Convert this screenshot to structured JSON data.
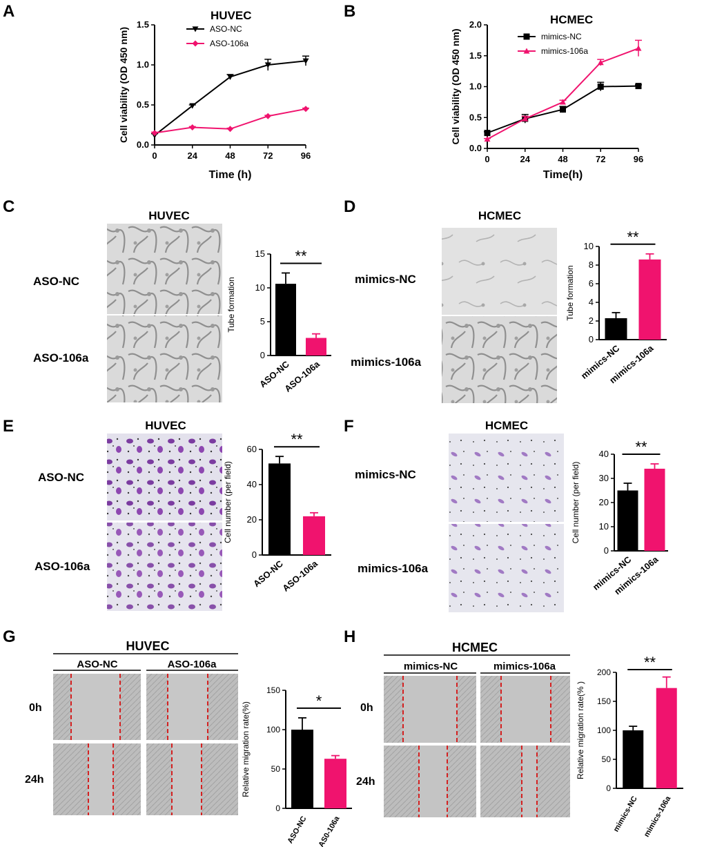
{
  "colors": {
    "black": "#000000",
    "pink": "#F0136E",
    "tube_bg": "#d8d8d8",
    "stain_bg": "#dcdcea",
    "stain_cell": "#8a44a8",
    "wound_bg": "#b8b8b8"
  },
  "panels": {
    "A": "A",
    "B": "B",
    "C": "C",
    "D": "D",
    "E": "E",
    "F": "F",
    "G": "G",
    "H": "H"
  },
  "images": {
    "C": {
      "title": "HUVEC",
      "rows": [
        "ASO-NC",
        "ASO-106a"
      ]
    },
    "D": {
      "title": "HCMEC",
      "rows": [
        "mimics-NC",
        "mimics-106a"
      ]
    },
    "E": {
      "title": "HUVEC",
      "rows": [
        "ASO-NC",
        "ASO-106a"
      ]
    },
    "F": {
      "title": "HCMEC",
      "rows": [
        "mimics-NC",
        "mimics-106a"
      ]
    },
    "G": {
      "title": "HUVEC",
      "cols": [
        "ASO-NC",
        "ASO-106a"
      ],
      "rows": [
        "0h",
        "24h"
      ]
    },
    "H": {
      "title": "HCMEC",
      "cols": [
        "mimics-NC",
        "mimics-106a"
      ],
      "rows": [
        "0h",
        "24h"
      ]
    }
  },
  "chart_data": [
    {
      "id": "A",
      "type": "line",
      "title": "HUVEC",
      "xlabel": "Time (h)",
      "ylabel": "Cell viability (OD 450 nm)",
      "x": [
        0,
        24,
        48,
        72,
        96
      ],
      "xticks": [
        "0",
        "24",
        "48",
        "72",
        "96"
      ],
      "ylim": [
        0,
        1.5
      ],
      "yticks": [
        "0.0",
        "0.5",
        "1.0",
        "1.5"
      ],
      "series": [
        {
          "name": "ASO-NC",
          "color": "#000000",
          "marker": "triangle-down",
          "values": [
            0.12,
            0.49,
            0.85,
            1.0,
            1.05
          ],
          "err": [
            0.02,
            0.01,
            0.03,
            0.07,
            0.06
          ]
        },
        {
          "name": "ASO-106a",
          "color": "#F0136E",
          "marker": "diamond",
          "values": [
            0.15,
            0.22,
            0.2,
            0.36,
            0.45
          ],
          "err": [
            0.01,
            0.01,
            0.01,
            0.01,
            0.01
          ]
        }
      ]
    },
    {
      "id": "B",
      "type": "line",
      "title": "HCMEC",
      "xlabel": "Time(h)",
      "ylabel": "Cell viability (OD 450 nm)",
      "x": [
        0,
        24,
        48,
        72,
        96
      ],
      "xticks": [
        "0",
        "24",
        "48",
        "72",
        "96"
      ],
      "ylim": [
        0,
        2.0
      ],
      "yticks": [
        "0.0",
        "0.5",
        "1.0",
        "1.5",
        "2.0"
      ],
      "series": [
        {
          "name": "mimics-NC",
          "color": "#000000",
          "marker": "square",
          "values": [
            0.25,
            0.48,
            0.63,
            1.0,
            1.01
          ],
          "err": [
            0.02,
            0.07,
            0.05,
            0.07,
            0.02
          ]
        },
        {
          "name": "mimics-106a",
          "color": "#F0136E",
          "marker": "triangle",
          "values": [
            0.15,
            0.48,
            0.75,
            1.39,
            1.62
          ],
          "err": [
            0.01,
            0.04,
            0.03,
            0.05,
            0.13
          ]
        }
      ]
    },
    {
      "id": "C",
      "type": "bar",
      "ylabel": "Tube formation",
      "categories": [
        "ASO-NC",
        "ASO-106a"
      ],
      "values": [
        10.6,
        2.6
      ],
      "err": [
        1.6,
        0.6
      ],
      "colors": [
        "#000000",
        "#F0136E"
      ],
      "ylim": [
        0,
        15
      ],
      "yticks": [
        "0",
        "5",
        "10",
        "15"
      ],
      "sig": "**"
    },
    {
      "id": "D",
      "type": "bar",
      "ylabel": "Tube formation",
      "categories": [
        "mimics-NC",
        "mimics-106a"
      ],
      "values": [
        2.3,
        8.6
      ],
      "err": [
        0.6,
        0.6
      ],
      "colors": [
        "#000000",
        "#F0136E"
      ],
      "ylim": [
        0,
        10
      ],
      "yticks": [
        "0",
        "2",
        "4",
        "6",
        "8",
        "10"
      ],
      "sig": "**"
    },
    {
      "id": "E",
      "type": "bar",
      "ylabel": "Cell number (per field)",
      "categories": [
        "ASO-NC",
        "ASO-106a"
      ],
      "values": [
        52,
        22
      ],
      "err": [
        4,
        2
      ],
      "colors": [
        "#000000",
        "#F0136E"
      ],
      "ylim": [
        0,
        60
      ],
      "yticks": [
        "0",
        "20",
        "40",
        "60"
      ],
      "sig": "**"
    },
    {
      "id": "F",
      "type": "bar",
      "ylabel": "Cell number (per field)",
      "categories": [
        "mimics-NC",
        "mimics-106a"
      ],
      "values": [
        25,
        34
      ],
      "err": [
        3,
        2
      ],
      "colors": [
        "#000000",
        "#F0136E"
      ],
      "ylim": [
        0,
        40
      ],
      "yticks": [
        "0",
        "10",
        "20",
        "30",
        "40"
      ],
      "sig": "**"
    },
    {
      "id": "G",
      "type": "bar",
      "ylabel": "Relative migration rate(%)",
      "categories": [
        "ASO-NC",
        "AS0-106a"
      ],
      "values": [
        100,
        63
      ],
      "err": [
        15,
        4
      ],
      "colors": [
        "#000000",
        "#F0136E"
      ],
      "ylim": [
        0,
        150
      ],
      "yticks": [
        "0",
        "50",
        "100",
        "150"
      ],
      "sig": "*"
    },
    {
      "id": "H",
      "type": "bar",
      "ylabel": "Relative migration rate(% )",
      "categories": [
        "mimics-NC",
        "mimics-106a"
      ],
      "values": [
        100,
        173
      ],
      "err": [
        7,
        19
      ],
      "colors": [
        "#000000",
        "#F0136E"
      ],
      "ylim": [
        0,
        200
      ],
      "yticks": [
        "0",
        "50",
        "100",
        "150",
        "200"
      ],
      "sig": "**"
    }
  ]
}
